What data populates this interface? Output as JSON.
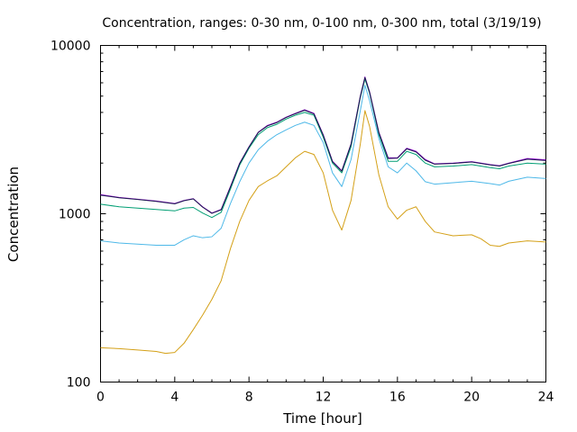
{
  "chart_data": {
    "type": "line",
    "title": "Concentration, ranges: 0-30 nm, 0-100 nm, 0-300 nm, total (3/19/19)",
    "xlabel": "Time [hour]",
    "ylabel": "Concentration",
    "xlim": [
      0,
      24
    ],
    "ylim": [
      100,
      10000
    ],
    "y_scale": "log",
    "grid": false,
    "xticks": [
      0,
      4,
      8,
      12,
      16,
      20,
      24
    ],
    "xtick_labels": [
      "0",
      "4",
      "8",
      "12",
      "16",
      "20",
      "24"
    ],
    "yticks": [
      100,
      1000,
      10000
    ],
    "ytick_labels": [
      "100",
      "1000",
      "10000"
    ],
    "series": [
      {
        "color": "#d4a017",
        "x": [
          0,
          1,
          2,
          3,
          3.5,
          4,
          4.5,
          5,
          5.5,
          6,
          6.5,
          7,
          7.5,
          8,
          8.5,
          9,
          9.5,
          10,
          10.5,
          11,
          11.5,
          12,
          12.5,
          13,
          13.5,
          14,
          14.25,
          14.5,
          15,
          15.5,
          16,
          16.5,
          17,
          17.5,
          18,
          19,
          20,
          20.5,
          21,
          21.5,
          22,
          23,
          24
        ],
        "y": [
          160,
          158,
          155,
          152,
          148,
          150,
          170,
          205,
          250,
          310,
          400,
          620,
          900,
          1200,
          1450,
          1570,
          1680,
          1900,
          2150,
          2350,
          2250,
          1750,
          1050,
          800,
          1200,
          2600,
          4100,
          3300,
          1700,
          1100,
          930,
          1050,
          1100,
          900,
          780,
          740,
          750,
          710,
          650,
          640,
          670,
          690,
          680
        ]
      },
      {
        "color": "#4db8e8",
        "x": [
          0,
          1,
          2,
          3,
          4,
          4.5,
          5,
          5.5,
          6,
          6.5,
          7,
          7.5,
          8,
          8.5,
          9,
          9.5,
          10,
          10.5,
          11,
          11.5,
          12,
          12.5,
          13,
          13.5,
          14,
          14.25,
          14.5,
          15,
          15.5,
          16,
          16.5,
          17,
          17.5,
          18,
          19,
          20,
          21,
          21.5,
          22,
          23,
          24
        ],
        "y": [
          690,
          670,
          660,
          650,
          650,
          700,
          740,
          720,
          730,
          820,
          1150,
          1550,
          2000,
          2400,
          2700,
          2950,
          3150,
          3350,
          3500,
          3350,
          2650,
          1750,
          1450,
          2100,
          4100,
          5800,
          4700,
          2800,
          1900,
          1750,
          2000,
          1800,
          1550,
          1500,
          1530,
          1560,
          1510,
          1480,
          1560,
          1650,
          1620
        ]
      },
      {
        "color": "#009e73",
        "x": [
          0,
          1,
          2,
          3,
          4,
          4.5,
          5,
          5.5,
          6,
          6.5,
          7,
          7.5,
          8,
          8.5,
          9,
          9.5,
          10,
          10.5,
          11,
          11.5,
          12,
          12.5,
          13,
          13.5,
          14,
          14.25,
          14.5,
          15,
          15.5,
          16,
          16.5,
          17,
          17.5,
          18,
          19,
          20,
          21,
          21.5,
          22,
          23,
          24
        ],
        "y": [
          1140,
          1100,
          1080,
          1060,
          1040,
          1080,
          1090,
          1010,
          950,
          1020,
          1400,
          1950,
          2450,
          2950,
          3250,
          3400,
          3650,
          3850,
          4000,
          3850,
          2850,
          2000,
          1750,
          2500,
          4900,
          6300,
          5200,
          2950,
          2050,
          2050,
          2350,
          2250,
          2000,
          1900,
          1920,
          1960,
          1880,
          1850,
          1920,
          2000,
          1970
        ]
      },
      {
        "color": "#9400d3",
        "x": [
          0,
          1,
          2,
          3,
          4,
          4.5,
          5,
          5.5,
          6,
          6.5,
          7,
          7.5,
          8,
          8.5,
          9,
          9.5,
          10,
          10.5,
          11,
          11.5,
          12,
          12.5,
          13,
          13.5,
          14,
          14.25,
          14.5,
          15,
          15.5,
          16,
          16.5,
          17,
          17.5,
          18,
          19,
          20,
          21,
          21.5,
          22,
          23,
          24
        ],
        "y": [
          1300,
          1250,
          1220,
          1190,
          1150,
          1200,
          1230,
          1100,
          1010,
          1060,
          1450,
          2000,
          2500,
          3050,
          3350,
          3500,
          3750,
          3950,
          4150,
          3950,
          2950,
          2050,
          1800,
          2600,
          5000,
          6500,
          5300,
          3050,
          2150,
          2150,
          2450,
          2350,
          2100,
          1980,
          2000,
          2040,
          1960,
          1930,
          2000,
          2130,
          2090
        ]
      },
      {
        "color": "#1a1a4d",
        "x": [
          0,
          1,
          2,
          3,
          4,
          4.5,
          5,
          5.5,
          6,
          6.5,
          7,
          7.5,
          8,
          8.5,
          9,
          9.5,
          10,
          10.5,
          11,
          11.5,
          12,
          12.5,
          13,
          13.5,
          14,
          14.25,
          14.5,
          15,
          15.5,
          16,
          16.5,
          17,
          17.5,
          18,
          19,
          20,
          21,
          21.5,
          22,
          23,
          24
        ],
        "y": [
          1290,
          1245,
          1215,
          1185,
          1145,
          1195,
          1225,
          1095,
          1005,
          1055,
          1440,
          1990,
          2490,
          3040,
          3330,
          3480,
          3730,
          3930,
          4120,
          3920,
          2930,
          2040,
          1790,
          2590,
          4980,
          6450,
          5270,
          3030,
          2130,
          2140,
          2430,
          2330,
          2080,
          1970,
          1990,
          2030,
          1950,
          1920,
          1990,
          2110,
          2070
        ]
      }
    ]
  }
}
